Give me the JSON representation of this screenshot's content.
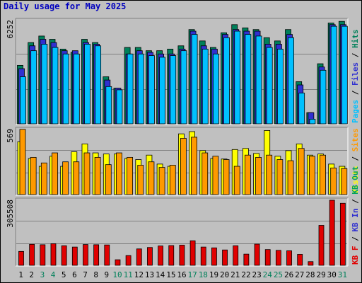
{
  "title": "Daily usage for May 2025",
  "colors": {
    "pages": "#00c0ff",
    "files": "#3030d0",
    "hits": "#00805a",
    "visits": "#ffff00",
    "sites": "#ff9900",
    "kbin": "#00a060",
    "kbf": "#e00000"
  },
  "chart_data": [
    {
      "type": "bar",
      "panel": "top",
      "max_label": "6252",
      "categories": [
        "1",
        "2",
        "3",
        "4",
        "5",
        "6",
        "7",
        "8",
        "9",
        "10",
        "11",
        "12",
        "13",
        "14",
        "15",
        "16",
        "17",
        "18",
        "19",
        "20",
        "21",
        "22",
        "23",
        "24",
        "25",
        "26",
        "27",
        "28",
        "29",
        "30",
        "31"
      ],
      "weekend_days": [
        3,
        4,
        10,
        11,
        17,
        18,
        24,
        25,
        31
      ],
      "legend": [
        "Pages",
        "/",
        "Files",
        "/",
        "Hits"
      ],
      "ylim": [
        0,
        6252
      ],
      "series": [
        {
          "name": "Hits",
          "values": [
            3500,
            4900,
            5300,
            5100,
            4500,
            4300,
            5100,
            4900,
            2800,
            2100,
            4600,
            4600,
            4400,
            4400,
            4500,
            4700,
            5700,
            5000,
            4600,
            5500,
            6000,
            5800,
            5700,
            5200,
            5000,
            5700,
            2500,
            600,
            3600,
            6100,
            6200
          ]
        },
        {
          "name": "Files",
          "values": [
            3300,
            4700,
            5100,
            4900,
            4400,
            4400,
            4900,
            4800,
            2600,
            2100,
            4200,
            4400,
            4300,
            4200,
            4200,
            4500,
            5600,
            4700,
            4500,
            5400,
            5700,
            5600,
            5600,
            4800,
            4800,
            5400,
            2300,
            600,
            3400,
            6000,
            6000
          ]
        },
        {
          "name": "Pages",
          "values": [
            2800,
            4400,
            4800,
            4600,
            4200,
            4200,
            4800,
            4700,
            2200,
            2000,
            4200,
            4200,
            4100,
            4000,
            4100,
            4400,
            5400,
            4500,
            4200,
            5200,
            5600,
            5400,
            5300,
            4600,
            4500,
            5200,
            1800,
            200,
            3200,
            5900,
            5900
          ]
        }
      ]
    },
    {
      "type": "bar",
      "panel": "middle",
      "max_label": "569",
      "categories": [
        "1",
        "2",
        "3",
        "4",
        "5",
        "6",
        "7",
        "8",
        "9",
        "10",
        "11",
        "12",
        "13",
        "14",
        "15",
        "16",
        "17",
        "18",
        "19",
        "20",
        "21",
        "22",
        "23",
        "24",
        "25",
        "26",
        "27",
        "28",
        "29",
        "30",
        "31"
      ],
      "legend": [
        "Visits",
        "/",
        "Sites"
      ],
      "ylim": [
        0,
        569
      ],
      "series": [
        {
          "name": "Visits",
          "values": [
            460,
            310,
            240,
            330,
            240,
            370,
            440,
            360,
            350,
            350,
            310,
            300,
            340,
            260,
            240,
            530,
            550,
            380,
            310,
            305,
            390,
            400,
            355,
            560,
            330,
            380,
            440,
            340,
            350,
            260,
            240
          ]
        },
        {
          "name": "Sites",
          "values": [
            570,
            320,
            270,
            360,
            280,
            280,
            360,
            320,
            255,
            360,
            320,
            250,
            280,
            230,
            250,
            490,
            500,
            360,
            330,
            300,
            240,
            340,
            320,
            340,
            300,
            290,
            400,
            330,
            340,
            225,
            220
          ]
        }
      ]
    },
    {
      "type": "bar",
      "panel": "bottom",
      "max_label": "305508",
      "categories": [
        "1",
        "2",
        "3",
        "4",
        "5",
        "6",
        "7",
        "8",
        "9",
        "10",
        "11",
        "12",
        "13",
        "14",
        "15",
        "16",
        "17",
        "18",
        "19",
        "20",
        "21",
        "22",
        "23",
        "24",
        "25",
        "26",
        "27",
        "28",
        "29",
        "30",
        "31"
      ],
      "legend": [
        "KB F",
        "/",
        "KB In",
        "/",
        "KB Out"
      ],
      "ylim": [
        0,
        305508
      ],
      "series": [
        {
          "name": "KB F",
          "values": [
            60000,
            94000,
            92000,
            97000,
            87000,
            81000,
            93000,
            92000,
            91000,
            20000,
            40000,
            72000,
            79000,
            86000,
            88000,
            90000,
            111000,
            81000,
            77000,
            67000,
            87000,
            47000,
            95000,
            69000,
            65000,
            63000,
            46000,
            11000,
            185000,
            305508,
            291000
          ]
        }
      ]
    }
  ]
}
